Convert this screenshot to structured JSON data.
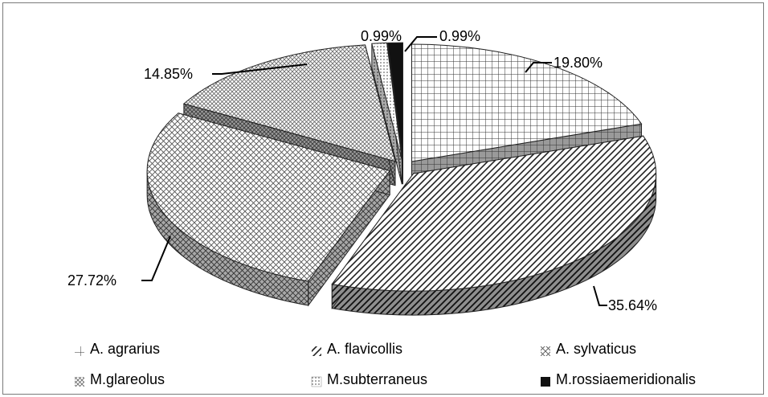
{
  "chart_data": {
    "type": "pie",
    "categories": [
      "A. agrarius",
      "A. flavicollis",
      "A. sylvaticus",
      "M.glareolus",
      "M.subterraneus",
      "M.rossiaemeridionalis"
    ],
    "values": [
      19.8,
      35.64,
      27.72,
      14.85,
      0.99,
      0.99
    ],
    "data_labels": [
      "19.80%",
      "35.64%",
      "27.72%",
      "14.85%",
      "0.99%",
      "0.99%"
    ],
    "exploded": true,
    "three_d": true,
    "legend_position": "bottom",
    "patterns": [
      "grid",
      "diagonal-stripes",
      "diagonal-crosshatch",
      "fine-crosshatch",
      "dotted",
      "solid-black"
    ],
    "title": ""
  },
  "legend": {
    "items": [
      {
        "label": "A. agrarius"
      },
      {
        "label": "A. flavicollis"
      },
      {
        "label": "A. sylvaticus"
      },
      {
        "label": "M.glareolus"
      },
      {
        "label": "M.subterraneus"
      },
      {
        "label": "M.rossiaemeridionalis"
      }
    ]
  }
}
